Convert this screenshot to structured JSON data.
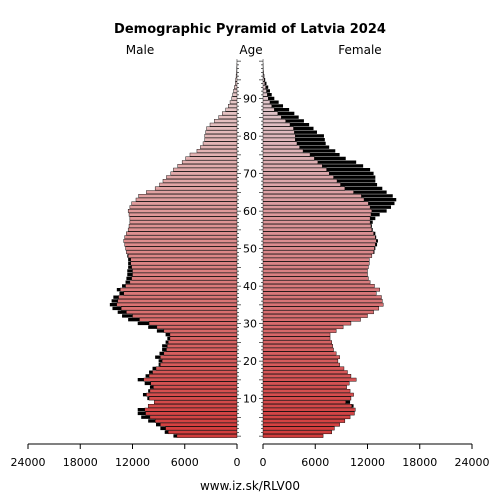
{
  "chart_data": {
    "type": "bar",
    "orientation": "horizontal-pyramid",
    "title": "Demographic Pyramid of Latvia 2024",
    "left_label": "Male",
    "center_label": "Age",
    "right_label": "Female",
    "source": "www.iz.sk/RLV00",
    "x_ticks_left": [
      "24000",
      "18000",
      "12000",
      "6000",
      "0"
    ],
    "x_ticks_right": [
      "0",
      "6000",
      "12000",
      "18000",
      "24000"
    ],
    "x_range": [
      0,
      24000
    ],
    "age_ticks": [
      "10",
      "20",
      "30",
      "40",
      "50",
      "60",
      "70",
      "80",
      "90"
    ],
    "age_range": [
      0,
      100
    ],
    "series": [
      {
        "name": "Male",
        "color": "#000000"
      },
      {
        "name": "Female",
        "color": "#000000"
      }
    ],
    "ages": [
      0,
      1,
      2,
      3,
      4,
      5,
      6,
      7,
      8,
      9,
      10,
      11,
      12,
      13,
      14,
      15,
      16,
      17,
      18,
      19,
      20,
      21,
      22,
      23,
      24,
      25,
      26,
      27,
      28,
      29,
      30,
      31,
      32,
      33,
      34,
      35,
      36,
      37,
      38,
      39,
      40,
      41,
      42,
      43,
      44,
      45,
      46,
      47,
      48,
      49,
      50,
      51,
      52,
      53,
      54,
      55,
      56,
      57,
      58,
      59,
      60,
      61,
      62,
      63,
      64,
      65,
      66,
      67,
      68,
      69,
      70,
      71,
      72,
      73,
      74,
      75,
      76,
      77,
      78,
      79,
      80,
      81,
      82,
      83,
      84,
      85,
      86,
      87,
      88,
      89,
      90,
      91,
      92,
      93,
      94,
      95,
      96,
      97,
      98,
      99,
      100
    ],
    "male": [
      7300,
      8300,
      8800,
      9300,
      10200,
      11000,
      11400,
      11400,
      10200,
      9500,
      10300,
      10800,
      10200,
      10000,
      10600,
      11400,
      10500,
      10100,
      9700,
      9000,
      9000,
      9400,
      8900,
      8600,
      8600,
      8200,
      8000,
      8200,
      9200,
      10200,
      11400,
      12500,
      13200,
      13700,
      14300,
      14600,
      14400,
      14200,
      13500,
      13800,
      13200,
      12800,
      12700,
      12600,
      12600,
      12500,
      12500,
      12500,
      12600,
      12700,
      12800,
      12900,
      13000,
      12900,
      12700,
      12500,
      12400,
      12300,
      12300,
      12400,
      12500,
      12300,
      12100,
      11600,
      11300,
      10400,
      9400,
      8900,
      8500,
      8100,
      7600,
      7300,
      6800,
      6300,
      5900,
      5400,
      4600,
      4200,
      3900,
      3700,
      3700,
      3600,
      3500,
      3100,
      2600,
      2100,
      1700,
      1300,
      1000,
      800,
      600,
      500,
      400,
      300,
      200,
      150,
      100,
      60,
      30,
      15,
      5
    ],
    "female": [
      6900,
      7900,
      8200,
      8800,
      9400,
      10000,
      10500,
      10600,
      10400,
      10000,
      10100,
      10400,
      10000,
      9600,
      9900,
      10700,
      10100,
      9700,
      9300,
      8800,
      8600,
      8800,
      8400,
      8100,
      8000,
      7900,
      7700,
      7700,
      8400,
      9200,
      10100,
      11200,
      12000,
      12700,
      13300,
      13800,
      13700,
      13600,
      13000,
      13400,
      12800,
      12300,
      12100,
      12000,
      12000,
      12100,
      12200,
      12200,
      12500,
      12800,
      12900,
      13100,
      13200,
      13000,
      12900,
      12600,
      12500,
      12600,
      12900,
      13400,
      14200,
      14700,
      15100,
      15300,
      14900,
      14200,
      13700,
      13100,
      12900,
      12900,
      12700,
      12300,
      11500,
      10700,
      9500,
      8800,
      8300,
      7600,
      7200,
      7100,
      7000,
      6200,
      5800,
      5300,
      4700,
      4100,
      3600,
      3000,
      2300,
      1800,
      1300,
      1000,
      800,
      600,
      400,
      250,
      150,
      80,
      40,
      20,
      5
    ],
    "male_below_female_series": [
      7300,
      8300,
      8800,
      9300,
      10200,
      11000,
      11400,
      11400,
      10200,
      9500,
      10300,
      10800,
      10200,
      10000,
      10600,
      11400,
      10500,
      10100,
      9700,
      9000,
      9000,
      9400,
      8900,
      8600,
      8600,
      8200,
      8000,
      8200,
      9200,
      10200,
      11400,
      12500,
      13200,
      13700,
      14300,
      14600,
      14400,
      14200,
      13500,
      13800,
      13200,
      12800,
      12700,
      12600,
      12600,
      12500,
      12500,
      12500,
      12600,
      12700,
      12800,
      12900,
      13000,
      12900,
      12700,
      12500,
      12400,
      12300,
      12300,
      12400,
      12500,
      12300,
      12100,
      11600,
      11300,
      10400,
      9400,
      8900,
      8500,
      8100,
      7600,
      7300,
      6800,
      6300,
      5900,
      5400,
      4600,
      4200,
      3900,
      3700,
      3700,
      3600,
      3500,
      3100,
      2600,
      2100,
      1700,
      1300,
      1000,
      800,
      600,
      500,
      400,
      300,
      200,
      150,
      100,
      60,
      30,
      15,
      5
    ]
  }
}
